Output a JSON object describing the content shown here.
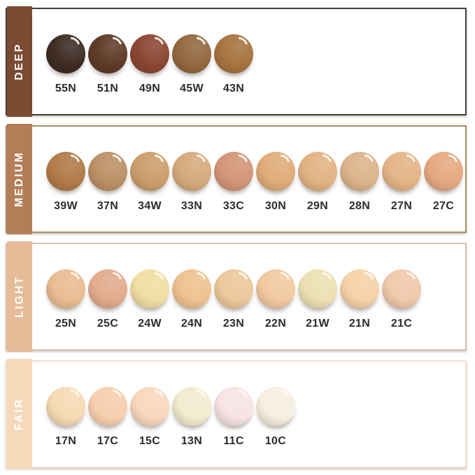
{
  "chart_data": {
    "type": "table",
    "description_of_visual": "Foundation shade chart with four bordered rows, each with a colored vertical category tab on the left and a line of glossy liquid-foundation swatch drops labeled by shade code",
    "rows": [
      {
        "group": "DEEP",
        "sidebar_color": "#7b4a33",
        "border_color": "#46403a",
        "shades": [
          {
            "code": "55N",
            "color": "#3e2c24"
          },
          {
            "code": "51N",
            "color": "#5e3a27"
          },
          {
            "code": "49N",
            "color": "#8b4632"
          },
          {
            "code": "45W",
            "color": "#92683f"
          },
          {
            "code": "43N",
            "color": "#a7743f"
          }
        ]
      },
      {
        "group": "MEDIUM",
        "sidebar_color": "#b37e57",
        "border_color": "#a98b66",
        "shades": [
          {
            "code": "39W",
            "color": "#b17b49"
          },
          {
            "code": "37N",
            "color": "#bc9066"
          },
          {
            "code": "34W",
            "color": "#cb9d6b"
          },
          {
            "code": "33N",
            "color": "#d5aa7c"
          },
          {
            "code": "33C",
            "color": "#d39577"
          },
          {
            "code": "30N",
            "color": "#e0ac79"
          },
          {
            "code": "29N",
            "color": "#e2b283"
          },
          {
            "code": "28N",
            "color": "#dbb48a"
          },
          {
            "code": "27N",
            "color": "#e4b486"
          },
          {
            "code": "27C",
            "color": "#e5a981"
          }
        ]
      },
      {
        "group": "LIGHT",
        "sidebar_color": "#e6bb97",
        "border_color": "#dcc2a7",
        "shades": [
          {
            "code": "25N",
            "color": "#e9bc92"
          },
          {
            "code": "25C",
            "color": "#e2ab8d"
          },
          {
            "code": "24W",
            "color": "#f1dea2"
          },
          {
            "code": "24N",
            "color": "#eec28f"
          },
          {
            "code": "23N",
            "color": "#edc89c"
          },
          {
            "code": "22N",
            "color": "#f1c9a1"
          },
          {
            "code": "21W",
            "color": "#ece0b3"
          },
          {
            "code": "21N",
            "color": "#f5d2a8"
          },
          {
            "code": "21C",
            "color": "#f1c8ac"
          }
        ]
      },
      {
        "group": "FAIR",
        "sidebar_color": "#f6d9ba",
        "border_color": "#efe0c9",
        "shades": [
          {
            "code": "17N",
            "color": "#f6dab3"
          },
          {
            "code": "17C",
            "color": "#f6cfae"
          },
          {
            "code": "15C",
            "color": "#f9d7bd"
          },
          {
            "code": "13N",
            "color": "#f3ebcf"
          },
          {
            "code": "11C",
            "color": "#f7e3e5"
          },
          {
            "code": "10C",
            "color": "#f6efe1"
          }
        ]
      }
    ]
  },
  "style": {
    "background_color": "#ffffff",
    "shade_label_color": "#2d2c2a",
    "sidebar_text_color": "#ffffff"
  }
}
